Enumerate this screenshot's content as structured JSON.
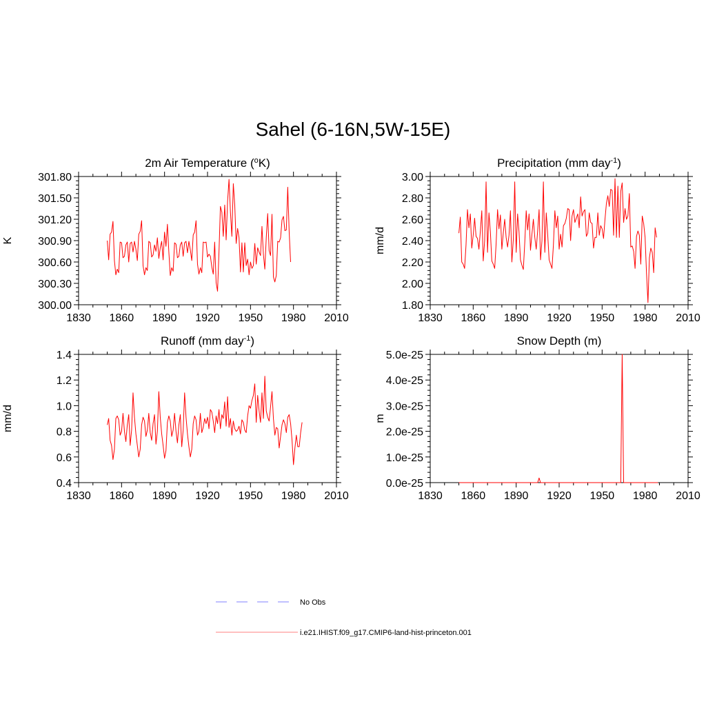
{
  "figure_title": "Sahel (6-16N,5W-15E)",
  "legend": {
    "items": [
      {
        "label": "No Obs",
        "color": "#9999ff",
        "style": "dashed"
      },
      {
        "label": "i.e21.IHIST.f09_g17.CMIP6-land-hist-princeton.001",
        "color": "#ff9999",
        "style": "solid"
      }
    ]
  },
  "series_color": "#ff0000",
  "chart_data": [
    {
      "type": "line",
      "title": "2m Air Temperature (°K)",
      "title_parts": [
        "2m Air Temperature (",
        "o",
        "K)"
      ],
      "ylabel": "K",
      "xlim": [
        1830,
        2010
      ],
      "ylim": [
        300.0,
        301.8
      ],
      "xticks": [
        "1830",
        "1860",
        "1890",
        "1920",
        "1950",
        "1980",
        "2010"
      ],
      "yticks": [
        "300.00",
        "300.30",
        "300.60",
        "300.90",
        "301.20",
        "301.50",
        "301.80"
      ],
      "x_start": 1850,
      "values": [
        300.9,
        300.63,
        300.99,
        301.02,
        301.17,
        300.62,
        300.42,
        300.5,
        300.45,
        300.88,
        300.87,
        300.66,
        300.68,
        300.84,
        300.88,
        300.6,
        300.86,
        300.88,
        300.74,
        300.89,
        300.78,
        300.62,
        300.99,
        301.03,
        301.18,
        300.55,
        300.42,
        300.52,
        300.48,
        300.89,
        300.87,
        300.67,
        300.7,
        300.84,
        300.75,
        300.94,
        300.65,
        300.8,
        300.89,
        300.63,
        301.02,
        300.82,
        301.13,
        300.74,
        300.41,
        300.52,
        300.47,
        300.87,
        300.85,
        300.66,
        300.68,
        300.84,
        300.88,
        300.68,
        300.87,
        300.89,
        300.73,
        300.89,
        300.77,
        300.62,
        300.98,
        301.02,
        301.18,
        300.57,
        300.43,
        300.52,
        300.45,
        300.88,
        300.87,
        300.88,
        300.67,
        300.71,
        300.68,
        300.53,
        300.43,
        300.88,
        300.31,
        300.19,
        300.74,
        301.38,
        301.3,
        300.96,
        301.4,
        300.91,
        301.45,
        301.76,
        301.3,
        300.96,
        301.7,
        301.4,
        300.86,
        301.07,
        300.94,
        300.46,
        300.87,
        300.46,
        300.87,
        300.55,
        300.64,
        300.42,
        300.6,
        300.51,
        300.55,
        300.86,
        300.57,
        300.8,
        300.74,
        300.69,
        301.1,
        300.71,
        300.5,
        300.94,
        301.28,
        300.76,
        300.69,
        301.27,
        300.39,
        300.32,
        300.41,
        300.89,
        300.88,
        300.94,
        301.19,
        301.24,
        301.04,
        301.05,
        301.65,
        301.02,
        300.6
      ]
    },
    {
      "type": "line",
      "title": "Precipitation (mm day-1)",
      "title_parts": [
        "Precipitation (mm day",
        "-1",
        ")"
      ],
      "ylabel": "mm/d",
      "xlim": [
        1830,
        2010
      ],
      "ylim": [
        1.8,
        3.0
      ],
      "xticks": [
        "1830",
        "1860",
        "1890",
        "1920",
        "1950",
        "1980",
        "2010"
      ],
      "yticks": [
        "1.80",
        "2.00",
        "2.20",
        "2.40",
        "2.60",
        "2.80",
        "3.00"
      ],
      "x_start": 1850,
      "values": [
        2.47,
        2.62,
        2.2,
        2.18,
        2.14,
        2.36,
        2.69,
        2.52,
        2.65,
        2.33,
        2.45,
        2.61,
        2.44,
        2.42,
        2.32,
        2.49,
        2.68,
        2.21,
        2.4,
        2.95,
        2.29,
        2.66,
        2.48,
        2.21,
        2.18,
        2.14,
        2.37,
        2.69,
        2.51,
        2.64,
        2.32,
        2.47,
        2.6,
        2.43,
        2.34,
        2.45,
        2.68,
        2.2,
        2.41,
        2.95,
        2.29,
        2.65,
        2.48,
        2.22,
        2.17,
        2.13,
        2.38,
        2.68,
        2.5,
        2.65,
        2.31,
        2.46,
        2.6,
        2.43,
        2.32,
        2.49,
        2.69,
        2.22,
        2.4,
        2.95,
        2.29,
        2.66,
        2.46,
        2.22,
        2.18,
        2.14,
        2.36,
        2.68,
        2.52,
        2.63,
        2.32,
        2.46,
        2.34,
        2.54,
        2.56,
        2.61,
        2.7,
        2.69,
        2.4,
        2.63,
        2.69,
        2.57,
        2.61,
        2.65,
        2.52,
        2.81,
        2.63,
        2.67,
        2.69,
        2.44,
        2.47,
        2.66,
        2.57,
        2.56,
        2.33,
        2.43,
        2.43,
        2.66,
        2.45,
        2.54,
        2.51,
        2.42,
        2.6,
        2.75,
        2.82,
        2.72,
        2.88,
        2.87,
        2.45,
        2.98,
        2.43,
        2.91,
        2.43,
        2.86,
        2.94,
        2.57,
        2.7,
        2.6,
        2.63,
        2.84,
        2.34,
        2.35,
        2.3,
        2.14,
        2.44,
        2.49,
        2.45,
        2.18,
        2.63,
        2.56,
        2.43,
        2.09,
        1.82,
        2.24,
        2.33,
        2.29,
        2.1,
        2.52,
        2.43
      ]
    },
    {
      "type": "line",
      "title": "Runoff (mm day-1)",
      "title_parts": [
        "Runoff (mm day",
        "-1",
        ")"
      ],
      "ylabel": "mm/d",
      "xlim": [
        1830,
        2010
      ],
      "ylim": [
        0.4,
        1.4
      ],
      "xticks": [
        "1830",
        "1860",
        "1890",
        "1920",
        "1950",
        "1980",
        "2010"
      ],
      "yticks": [
        "0.4",
        "0.6",
        "0.8",
        "1.0",
        "1.2",
        "1.4"
      ],
      "x_start": 1850,
      "values": [
        0.85,
        0.9,
        0.73,
        0.69,
        0.58,
        0.66,
        0.9,
        0.92,
        0.89,
        0.77,
        0.8,
        0.94,
        0.8,
        0.72,
        0.85,
        0.93,
        0.69,
        0.81,
        1.1,
        0.91,
        0.78,
        0.69,
        0.6,
        0.66,
        0.85,
        0.91,
        0.88,
        0.76,
        0.81,
        0.94,
        0.79,
        0.73,
        0.86,
        0.93,
        0.7,
        0.8,
        1.11,
        0.91,
        0.78,
        0.69,
        0.59,
        0.65,
        0.87,
        0.92,
        0.88,
        0.76,
        0.81,
        0.94,
        0.8,
        0.71,
        0.85,
        0.93,
        0.68,
        0.81,
        1.1,
        0.91,
        0.78,
        0.68,
        0.6,
        0.66,
        0.86,
        0.92,
        0.89,
        0.77,
        0.8,
        0.94,
        0.79,
        0.83,
        0.9,
        0.86,
        0.91,
        0.82,
        0.97,
        0.95,
        0.88,
        0.79,
        0.92,
        0.86,
        0.97,
        0.82,
        0.93,
        0.9,
        1.03,
        0.84,
        1.07,
        0.83,
        0.9,
        0.77,
        0.88,
        0.82,
        0.8,
        0.81,
        0.84,
        0.78,
        0.89,
        0.87,
        0.81,
        0.79,
        0.92,
        1.0,
        0.98,
        1.04,
        1.08,
        1.17,
        0.87,
        1.08,
        0.96,
        0.87,
        1.1,
        0.9,
        1.23,
        0.96,
        0.91,
        0.88,
        0.99,
        1.11,
        0.9,
        0.77,
        0.83,
        0.82,
        0.67,
        0.76,
        0.85,
        0.89,
        0.86,
        0.79,
        0.91,
        0.93,
        0.86,
        0.73,
        0.54,
        0.67,
        0.77,
        0.68,
        0.68,
        0.79,
        0.87
      ]
    },
    {
      "type": "line",
      "title": "Snow Depth (m)",
      "title_parts": [
        "Snow Depth (m)"
      ],
      "ylabel": "m",
      "xlim": [
        1830,
        2010
      ],
      "ylim": [
        0,
        5e-25
      ],
      "xticks": [
        "1830",
        "1860",
        "1890",
        "1920",
        "1950",
        "1980",
        "2010"
      ],
      "yticks": [
        "0.0e-25",
        "1.0e-25",
        "2.0e-25",
        "3.0e-25",
        "4.0e-25",
        "5.0e-25"
      ],
      "x": [
        1850,
        1905,
        1906,
        1907,
        1963,
        1964,
        1965,
        1966,
        1989
      ],
      "values": [
        0,
        0,
        1.8e-26,
        0,
        0,
        5e-25,
        0,
        0,
        0
      ]
    }
  ]
}
